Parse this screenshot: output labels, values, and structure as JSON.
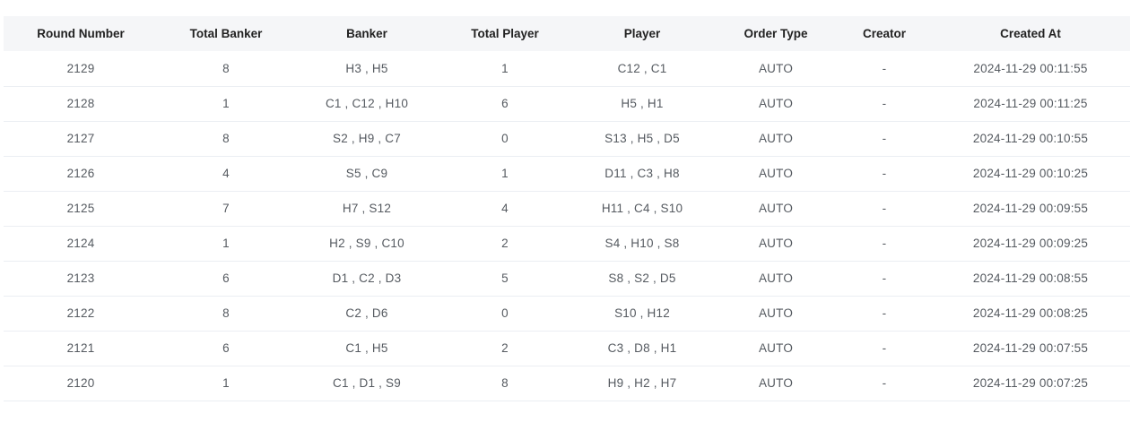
{
  "table": {
    "headers": [
      "Round Number",
      "Total Banker",
      "Banker",
      "Total Player",
      "Player",
      "Order Type",
      "Creator",
      "Created At"
    ],
    "rows": [
      [
        "2129",
        "8",
        "H3 , H5",
        "1",
        "C12 , C1",
        "AUTO",
        "-",
        "2024-11-29 00:11:55"
      ],
      [
        "2128",
        "1",
        "C1 , C12 , H10",
        "6",
        "H5 , H1",
        "AUTO",
        "-",
        "2024-11-29 00:11:25"
      ],
      [
        "2127",
        "8",
        "S2 , H9 , C7",
        "0",
        "S13 , H5 , D5",
        "AUTO",
        "-",
        "2024-11-29 00:10:55"
      ],
      [
        "2126",
        "4",
        "S5 , C9",
        "1",
        "D11 , C3 , H8",
        "AUTO",
        "-",
        "2024-11-29 00:10:25"
      ],
      [
        "2125",
        "7",
        "H7 , S12",
        "4",
        "H11 , C4 , S10",
        "AUTO",
        "-",
        "2024-11-29 00:09:55"
      ],
      [
        "2124",
        "1",
        "H2 , S9 , C10",
        "2",
        "S4 , H10 , S8",
        "AUTO",
        "-",
        "2024-11-29 00:09:25"
      ],
      [
        "2123",
        "6",
        "D1 , C2 , D3",
        "5",
        "S8 , S2 , D5",
        "AUTO",
        "-",
        "2024-11-29 00:08:55"
      ],
      [
        "2122",
        "8",
        "C2 , D6",
        "0",
        "S10 , H12",
        "AUTO",
        "-",
        "2024-11-29 00:08:25"
      ],
      [
        "2121",
        "6",
        "C1 , H5",
        "2",
        "C3 , D8 , H1",
        "AUTO",
        "-",
        "2024-11-29 00:07:55"
      ],
      [
        "2120",
        "1",
        "C1 , D1 , S9",
        "8",
        "H9 , H2 , H7",
        "AUTO",
        "-",
        "2024-11-29 00:07:25"
      ]
    ]
  }
}
